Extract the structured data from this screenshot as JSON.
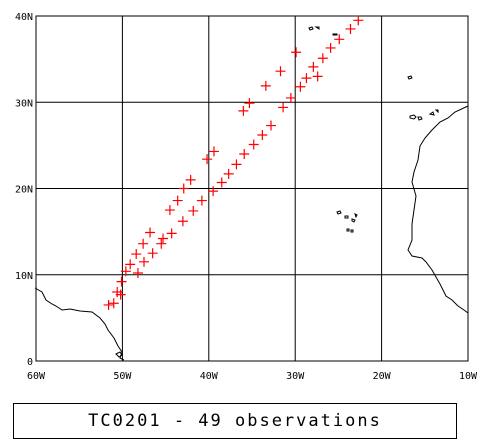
{
  "map": {
    "lon_range": [
      -60,
      -10
    ],
    "lat_range": [
      0,
      40
    ],
    "grid": true,
    "x_tick_labels": [
      "60W",
      "50W",
      "40W",
      "30W",
      "20W",
      "10W"
    ],
    "x_tick_values": [
      -60,
      -50,
      -40,
      -30,
      -20,
      -10
    ],
    "y_tick_labels": [
      "0",
      "10N",
      "20N",
      "30N",
      "40N"
    ],
    "y_tick_values": [
      0,
      10,
      20,
      30,
      40
    ],
    "marker_color": "#ff0000",
    "marker_symbol": "plus",
    "coastline_color": "#000000",
    "grid_color": "#000000"
  },
  "observations": [
    {
      "lon": -51.6,
      "lat": 6.5
    },
    {
      "lon": -51.0,
      "lat": 6.7
    },
    {
      "lon": -50.6,
      "lat": 8.0
    },
    {
      "lon": -50.2,
      "lat": 7.7
    },
    {
      "lon": -50.1,
      "lat": 9.2
    },
    {
      "lon": -49.6,
      "lat": 10.4
    },
    {
      "lon": -49.1,
      "lat": 11.2
    },
    {
      "lon": -48.4,
      "lat": 12.4
    },
    {
      "lon": -48.2,
      "lat": 10.2
    },
    {
      "lon": -47.6,
      "lat": 13.6
    },
    {
      "lon": -47.5,
      "lat": 11.5
    },
    {
      "lon": -46.8,
      "lat": 14.9
    },
    {
      "lon": -46.5,
      "lat": 12.5
    },
    {
      "lon": -45.5,
      "lat": 13.6
    },
    {
      "lon": -45.3,
      "lat": 14.2
    },
    {
      "lon": -44.5,
      "lat": 17.5
    },
    {
      "lon": -44.3,
      "lat": 14.8
    },
    {
      "lon": -43.6,
      "lat": 18.6
    },
    {
      "lon": -43.0,
      "lat": 16.2
    },
    {
      "lon": -42.9,
      "lat": 20.0
    },
    {
      "lon": -42.1,
      "lat": 21.0
    },
    {
      "lon": -41.8,
      "lat": 17.4
    },
    {
      "lon": -40.8,
      "lat": 18.6
    },
    {
      "lon": -40.2,
      "lat": 23.4
    },
    {
      "lon": -39.5,
      "lat": 19.7
    },
    {
      "lon": -39.4,
      "lat": 24.3
    },
    {
      "lon": -38.5,
      "lat": 20.7
    },
    {
      "lon": -37.7,
      "lat": 21.7
    },
    {
      "lon": -36.8,
      "lat": 22.8
    },
    {
      "lon": -36.0,
      "lat": 29.0
    },
    {
      "lon": -35.9,
      "lat": 24.0
    },
    {
      "lon": -35.3,
      "lat": 29.9
    },
    {
      "lon": -34.8,
      "lat": 25.1
    },
    {
      "lon": -33.8,
      "lat": 26.2
    },
    {
      "lon": -33.4,
      "lat": 31.9
    },
    {
      "lon": -32.8,
      "lat": 27.3
    },
    {
      "lon": -31.7,
      "lat": 33.6
    },
    {
      "lon": -31.4,
      "lat": 29.4
    },
    {
      "lon": -30.5,
      "lat": 30.5
    },
    {
      "lon": -29.9,
      "lat": 35.8
    },
    {
      "lon": -29.4,
      "lat": 31.8
    },
    {
      "lon": -28.7,
      "lat": 32.8
    },
    {
      "lon": -27.9,
      "lat": 34.1
    },
    {
      "lon": -27.4,
      "lat": 33.0
    },
    {
      "lon": -26.8,
      "lat": 35.1
    },
    {
      "lon": -25.9,
      "lat": 36.3
    },
    {
      "lon": -24.9,
      "lat": 37.3
    },
    {
      "lon": -23.6,
      "lat": 38.5
    },
    {
      "lon": -22.7,
      "lat": 39.5
    }
  ],
  "caption": {
    "text": "TC0201 - 49 observations"
  }
}
